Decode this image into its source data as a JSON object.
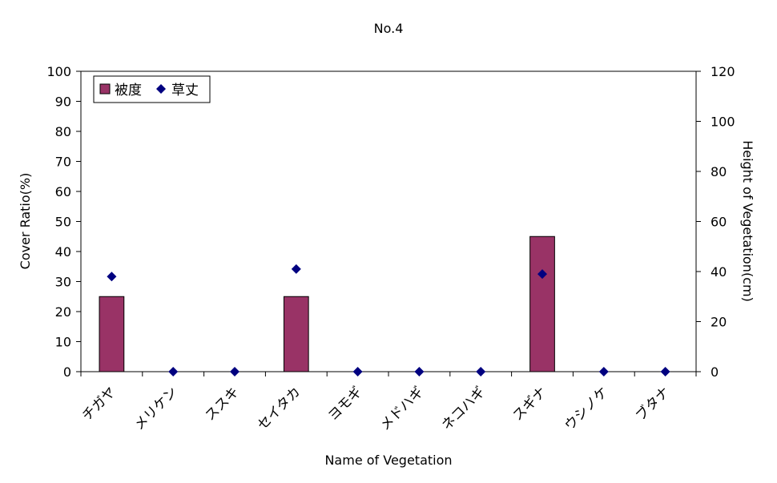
{
  "chart_data": {
    "type": "bar",
    "title": "No.4",
    "xlabel": "Name of Vegetation",
    "ylabel": "Cover Ratio(%)",
    "y2label": "Height of Vegetation(cm)",
    "categories": [
      "チガヤ",
      "メリケン",
      "ススキ",
      "セイタカ",
      "ヨモギ",
      "メドハギ",
      "ネコハギ",
      "スギナ",
      "ウシノケ",
      "ブタナ"
    ],
    "ylim": [
      0,
      100
    ],
    "yticks": [
      0,
      10,
      20,
      30,
      40,
      50,
      60,
      70,
      80,
      90,
      100
    ],
    "y2lim": [
      0,
      120
    ],
    "y2ticks": [
      0,
      20,
      40,
      60,
      80,
      100,
      120
    ],
    "grid": false,
    "legend_position": "top-left",
    "series": [
      {
        "name": "被度",
        "type": "bar",
        "axis": "left",
        "color": "#993366",
        "values": [
          25,
          0,
          0,
          25,
          0,
          0,
          0,
          45,
          0,
          0
        ]
      },
      {
        "name": "草丈",
        "type": "scatter",
        "axis": "right",
        "marker": "diamond",
        "color": "#000080",
        "values": [
          38,
          0,
          0,
          41,
          0,
          0,
          0,
          39,
          0,
          0
        ]
      }
    ]
  }
}
